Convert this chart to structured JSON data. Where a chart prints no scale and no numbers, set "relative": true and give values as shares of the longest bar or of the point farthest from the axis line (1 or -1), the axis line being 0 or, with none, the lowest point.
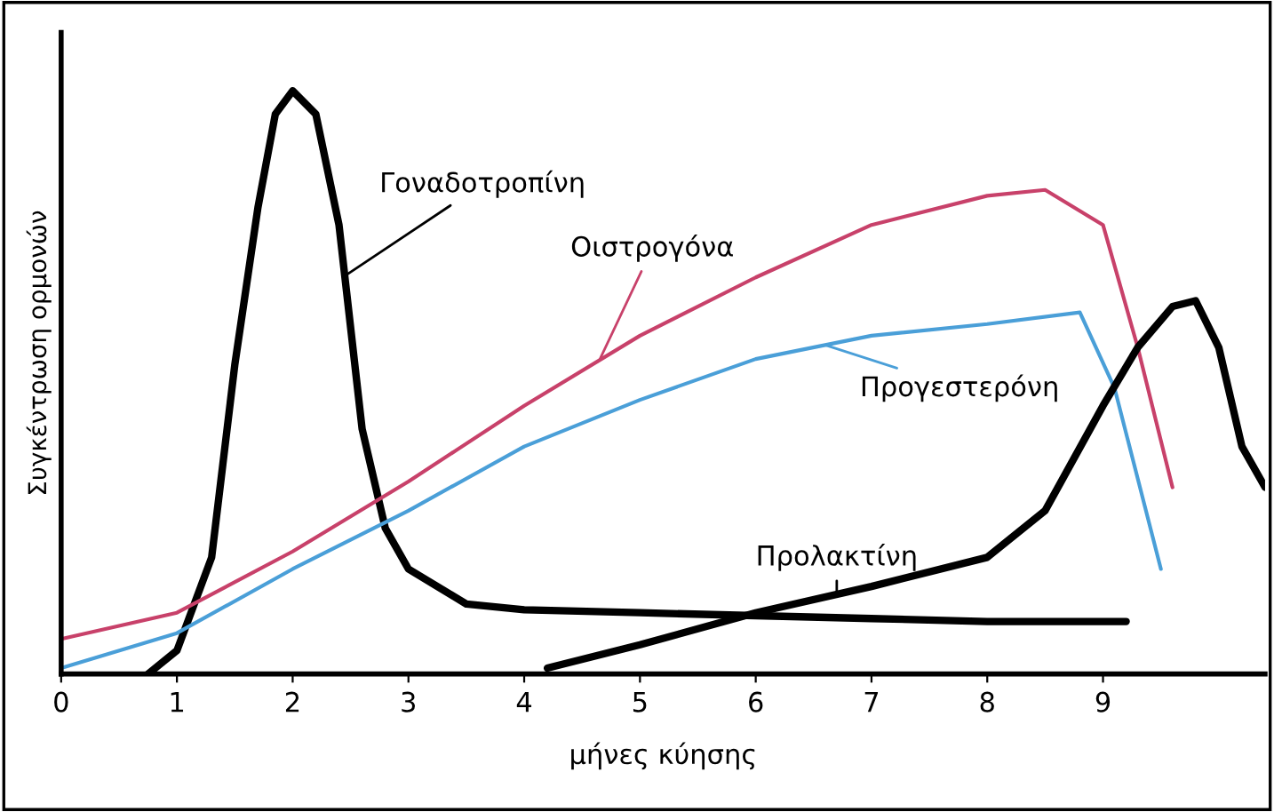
{
  "chart_data": {
    "type": "line",
    "relative": true,
    "xlabel": "μήνες κύησης",
    "ylabel": "Συγκέντρωση ορμονών",
    "xlim": [
      0,
      10.4
    ],
    "xticks": [
      0,
      1,
      2,
      3,
      4,
      5,
      6,
      7,
      8,
      9
    ],
    "grid": false,
    "marker": "none",
    "line_style": "solid",
    "series": [
      {
        "name": "Γοναδοτροπίνη",
        "color": "#000000",
        "x": [
          0.75,
          1.0,
          1.3,
          1.5,
          1.7,
          1.85,
          2.0,
          2.2,
          2.4,
          2.6,
          2.8,
          3.0,
          3.5,
          4,
          5,
          6,
          7,
          8,
          9.2
        ],
        "values": [
          0,
          0.04,
          0.2,
          0.53,
          0.8,
          0.96,
          1,
          0.96,
          0.77,
          0.42,
          0.25,
          0.18,
          0.12,
          0.11,
          0.105,
          0.1,
          0.095,
          0.09,
          0.09
        ]
      },
      {
        "name": "Οιστρογόνα",
        "color": "#c8416a",
        "x": [
          0,
          1,
          2,
          3,
          4,
          5,
          6,
          7,
          8,
          8.5,
          9,
          9.3,
          9.6
        ],
        "values": [
          0.06,
          0.105,
          0.21,
          0.33,
          0.46,
          0.58,
          0.68,
          0.77,
          0.82,
          0.83,
          0.77,
          0.56,
          0.32
        ]
      },
      {
        "name": "Προγεστερόνη",
        "color": "#4a9fd8",
        "x": [
          0,
          1,
          2,
          3,
          4,
          5,
          6,
          7,
          8,
          8.8,
          9.1,
          9.5
        ],
        "values": [
          0.01,
          0.07,
          0.18,
          0.28,
          0.39,
          0.47,
          0.54,
          0.58,
          0.6,
          0.62,
          0.49,
          0.18
        ]
      },
      {
        "name": "Προλακτίνη",
        "color": "#000000",
        "x": [
          4.2,
          5,
          6,
          7,
          8,
          8.5,
          9,
          9.3,
          9.6,
          9.8,
          10.0,
          10.2,
          10.4
        ],
        "values": [
          0.01,
          0.05,
          0.105,
          0.15,
          0.2,
          0.28,
          0.46,
          0.56,
          0.63,
          0.64,
          0.56,
          0.39,
          0.32
        ]
      }
    ]
  }
}
